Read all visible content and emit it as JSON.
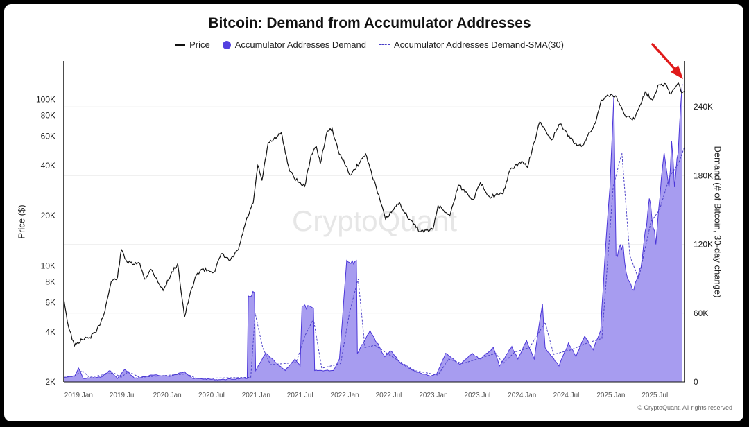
{
  "footer": "© CryptoQuant. All rights reserved",
  "watermark": "CryptoQuant",
  "chart_data": {
    "type": "line",
    "title": "Bitcoin: Demand from Accumulator Addresses",
    "ylabel_left": "Price ($)",
    "ylabel_right": "Demand (# of Bitcoin, 30-day change)",
    "legend": [
      "Price",
      "Accumulator Addresses Demand",
      "Accumulator Addresses Demand-SMA(30)"
    ],
    "legend_position": "top-center",
    "grid": true,
    "colors": {
      "price": "#111111",
      "demand_fill": "#a79cf0",
      "demand_line": "#4a35d8",
      "sma": "#4a3fc8",
      "arrow": "#e01a1a"
    },
    "x_ticks": [
      "2019 Jan",
      "2019 Jul",
      "2020 Jan",
      "2020 Jul",
      "2021 Jan",
      "2021 Jul",
      "2022 Jan",
      "2022 Jul",
      "2023 Jan",
      "2023 Jul",
      "2024 Jan",
      "2024 Jul",
      "2025 Jan",
      "2025 Jul"
    ],
    "x_range": [
      "2018-11-01",
      "2025-10-31"
    ],
    "y_left": {
      "scale": "log",
      "range": [
        2000,
        170000
      ],
      "ticks": [
        "2K",
        "4K",
        "6K",
        "8K",
        "10K",
        "20K",
        "40K",
        "60K",
        "80K",
        "100K"
      ],
      "tick_values": [
        2000,
        4000,
        6000,
        8000,
        10000,
        20000,
        40000,
        60000,
        80000,
        100000
      ]
    },
    "y_right": {
      "scale": "linear",
      "range": [
        0,
        280000
      ],
      "ticks": [
        "0",
        "60K",
        "120K",
        "180K",
        "240K"
      ],
      "tick_values": [
        0,
        60000,
        120000,
        180000,
        240000
      ]
    },
    "series": [
      {
        "name": "Price",
        "points": [
          [
            "2018-11-01",
            6300
          ],
          [
            "2018-11-20",
            4300
          ],
          [
            "2018-12-15",
            3300
          ],
          [
            "2019-01-15",
            3600
          ],
          [
            "2019-02-15",
            3700
          ],
          [
            "2019-03-15",
            4000
          ],
          [
            "2019-04-15",
            5100
          ],
          [
            "2019-05-15",
            8000
          ],
          [
            "2019-06-10",
            8500
          ],
          [
            "2019-06-26",
            12500
          ],
          [
            "2019-07-20",
            10500
          ],
          [
            "2019-08-15",
            10200
          ],
          [
            "2019-09-10",
            10300
          ],
          [
            "2019-09-30",
            8300
          ],
          [
            "2019-10-26",
            9500
          ],
          [
            "2019-11-15",
            8500
          ],
          [
            "2019-12-15",
            7100
          ],
          [
            "2020-01-15",
            8800
          ],
          [
            "2020-02-13",
            10300
          ],
          [
            "2020-03-12",
            4900
          ],
          [
            "2020-04-01",
            6500
          ],
          [
            "2020-04-30",
            8800
          ],
          [
            "2020-05-20",
            9500
          ],
          [
            "2020-06-15",
            9400
          ],
          [
            "2020-07-15",
            9200
          ],
          [
            "2020-08-10",
            11800
          ],
          [
            "2020-09-15",
            10700
          ],
          [
            "2020-10-20",
            12500
          ],
          [
            "2020-11-20",
            18500
          ],
          [
            "2020-12-20",
            23800
          ],
          [
            "2021-01-08",
            40000
          ],
          [
            "2021-01-25",
            32500
          ],
          [
            "2021-02-20",
            55000
          ],
          [
            "2021-03-15",
            58000
          ],
          [
            "2021-04-14",
            63000
          ],
          [
            "2021-05-19",
            37000
          ],
          [
            "2021-06-22",
            32000
          ],
          [
            "2021-07-20",
            30000
          ],
          [
            "2021-08-15",
            46000
          ],
          [
            "2021-09-06",
            52000
          ],
          [
            "2021-09-22",
            41000
          ],
          [
            "2021-10-20",
            64000
          ],
          [
            "2021-11-10",
            67000
          ],
          [
            "2021-12-05",
            49000
          ],
          [
            "2022-01-24",
            35000
          ],
          [
            "2022-03-28",
            47000
          ],
          [
            "2022-05-12",
            29000
          ],
          [
            "2022-06-18",
            19000
          ],
          [
            "2022-08-14",
            24000
          ],
          [
            "2022-09-15",
            19800
          ],
          [
            "2022-11-09",
            16000
          ],
          [
            "2022-12-30",
            16500
          ],
          [
            "2023-01-20",
            23000
          ],
          [
            "2023-03-10",
            20000
          ],
          [
            "2023-04-14",
            30500
          ],
          [
            "2023-06-15",
            25000
          ],
          [
            "2023-07-13",
            31500
          ],
          [
            "2023-08-20",
            26000
          ],
          [
            "2023-10-15",
            27000
          ],
          [
            "2023-11-10",
            37000
          ],
          [
            "2023-12-31",
            42500
          ],
          [
            "2024-01-23",
            39000
          ],
          [
            "2024-03-14",
            73000
          ],
          [
            "2024-05-01",
            57000
          ],
          [
            "2024-06-05",
            71000
          ],
          [
            "2024-08-05",
            54000
          ],
          [
            "2024-09-06",
            53000
          ],
          [
            "2024-10-29",
            72000
          ],
          [
            "2024-11-22",
            99000
          ],
          [
            "2024-12-17",
            106000
          ],
          [
            "2025-01-20",
            105000
          ],
          [
            "2025-02-28",
            80000
          ],
          [
            "2025-04-08",
            76000
          ],
          [
            "2025-05-22",
            111000
          ],
          [
            "2025-06-22",
            99000
          ],
          [
            "2025-07-14",
            122000
          ],
          [
            "2025-08-14",
            124000
          ],
          [
            "2025-09-01",
            108000
          ],
          [
            "2025-09-20",
            116000
          ],
          [
            "2025-10-06",
            125000
          ],
          [
            "2025-10-20",
            109000
          ],
          [
            "2025-10-31",
            112000
          ]
        ]
      },
      {
        "name": "Accumulator Addresses Demand",
        "points": [
          [
            "2018-11-01",
            4000
          ],
          [
            "2018-12-15",
            5000
          ],
          [
            "2019-01-01",
            12000
          ],
          [
            "2019-01-20",
            3000
          ],
          [
            "2019-04-01",
            4000
          ],
          [
            "2019-05-10",
            10000
          ],
          [
            "2019-06-10",
            3000
          ],
          [
            "2019-07-10",
            11000
          ],
          [
            "2019-08-20",
            3000
          ],
          [
            "2019-11-01",
            6000
          ],
          [
            "2020-01-15",
            5000
          ],
          [
            "2020-03-12",
            9000
          ],
          [
            "2020-04-15",
            3000
          ],
          [
            "2020-08-01",
            2000
          ],
          [
            "2020-11-25",
            3000
          ],
          [
            "2020-11-30",
            75000
          ],
          [
            "2020-12-25",
            78000
          ],
          [
            "2020-12-30",
            10000
          ],
          [
            "2021-02-10",
            25000
          ],
          [
            "2021-04-01",
            15000
          ],
          [
            "2021-05-01",
            10000
          ],
          [
            "2021-06-10",
            20000
          ],
          [
            "2021-07-01",
            14000
          ],
          [
            "2021-07-09",
            66000
          ],
          [
            "2021-08-25",
            64000
          ],
          [
            "2021-08-30",
            10000
          ],
          [
            "2021-11-15",
            10000
          ],
          [
            "2021-12-10",
            20000
          ],
          [
            "2022-01-09",
            106000
          ],
          [
            "2022-02-18",
            106000
          ],
          [
            "2022-02-22",
            25000
          ],
          [
            "2022-04-15",
            45000
          ],
          [
            "2022-06-15",
            22000
          ],
          [
            "2022-07-10",
            27000
          ],
          [
            "2022-08-20",
            16000
          ],
          [
            "2022-10-20",
            9000
          ],
          [
            "2022-12-20",
            5000
          ],
          [
            "2023-01-15",
            7000
          ],
          [
            "2023-02-20",
            25000
          ],
          [
            "2023-04-20",
            15000
          ],
          [
            "2023-06-10",
            25000
          ],
          [
            "2023-07-15",
            20000
          ],
          [
            "2023-09-05",
            30000
          ],
          [
            "2023-09-30",
            14000
          ],
          [
            "2023-11-20",
            31000
          ],
          [
            "2023-12-15",
            20000
          ],
          [
            "2024-01-20",
            36000
          ],
          [
            "2024-02-20",
            20000
          ],
          [
            "2024-03-25",
            68000
          ],
          [
            "2024-04-05",
            30000
          ],
          [
            "2024-06-01",
            14000
          ],
          [
            "2024-07-10",
            34000
          ],
          [
            "2024-08-10",
            22000
          ],
          [
            "2024-09-15",
            40000
          ],
          [
            "2024-10-20",
            28000
          ],
          [
            "2024-11-20",
            45000
          ],
          [
            "2024-12-05",
            100000
          ],
          [
            "2024-12-28",
            170000
          ],
          [
            "2025-01-13",
            250000
          ],
          [
            "2025-01-22",
            110000
          ],
          [
            "2025-02-20",
            120000
          ],
          [
            "2025-03-05",
            95000
          ],
          [
            "2025-04-05",
            80000
          ],
          [
            "2025-05-05",
            100000
          ],
          [
            "2025-06-08",
            160000
          ],
          [
            "2025-07-05",
            120000
          ],
          [
            "2025-08-08",
            200000
          ],
          [
            "2025-08-28",
            170000
          ],
          [
            "2025-09-08",
            210000
          ],
          [
            "2025-09-20",
            170000
          ],
          [
            "2025-10-05",
            200000
          ],
          [
            "2025-10-22",
            260000
          ]
        ]
      },
      {
        "name": "Accumulator Addresses Demand-SMA(30)",
        "points": [
          [
            "2018-11-01",
            4000
          ],
          [
            "2018-12-15",
            5000
          ],
          [
            "2019-01-15",
            10000
          ],
          [
            "2019-02-15",
            4000
          ],
          [
            "2019-05-25",
            8000
          ],
          [
            "2019-06-25",
            4000
          ],
          [
            "2019-07-25",
            9000
          ],
          [
            "2019-09-10",
            4000
          ],
          [
            "2020-03-20",
            7000
          ],
          [
            "2020-05-01",
            3000
          ],
          [
            "2020-12-10",
            4000
          ],
          [
            "2020-12-28",
            60000
          ],
          [
            "2021-01-28",
            30000
          ],
          [
            "2021-03-01",
            15000
          ],
          [
            "2021-06-15",
            17000
          ],
          [
            "2021-07-20",
            40000
          ],
          [
            "2021-08-25",
            55000
          ],
          [
            "2021-09-28",
            12000
          ],
          [
            "2021-12-15",
            16000
          ],
          [
            "2022-01-20",
            60000
          ],
          [
            "2022-02-25",
            90000
          ],
          [
            "2022-03-25",
            30000
          ],
          [
            "2022-05-05",
            32000
          ],
          [
            "2022-07-15",
            22000
          ],
          [
            "2022-10-15",
            10000
          ],
          [
            "2023-01-20",
            6000
          ],
          [
            "2023-03-05",
            20000
          ],
          [
            "2023-05-01",
            16000
          ],
          [
            "2023-07-01",
            20000
          ],
          [
            "2023-09-15",
            25000
          ],
          [
            "2023-10-15",
            16000
          ],
          [
            "2023-12-01",
            26000
          ],
          [
            "2024-02-01",
            30000
          ],
          [
            "2024-04-05",
            52000
          ],
          [
            "2024-05-10",
            24000
          ],
          [
            "2024-07-20",
            28000
          ],
          [
            "2024-09-25",
            34000
          ],
          [
            "2024-11-25",
            38000
          ],
          [
            "2025-01-10",
            170000
          ],
          [
            "2025-02-15",
            200000
          ],
          [
            "2025-03-20",
            110000
          ],
          [
            "2025-04-25",
            90000
          ],
          [
            "2025-06-15",
            140000
          ],
          [
            "2025-07-20",
            150000
          ],
          [
            "2025-09-01",
            180000
          ],
          [
            "2025-10-05",
            190000
          ],
          [
            "2025-10-31",
            205000
          ]
        ]
      }
    ]
  }
}
